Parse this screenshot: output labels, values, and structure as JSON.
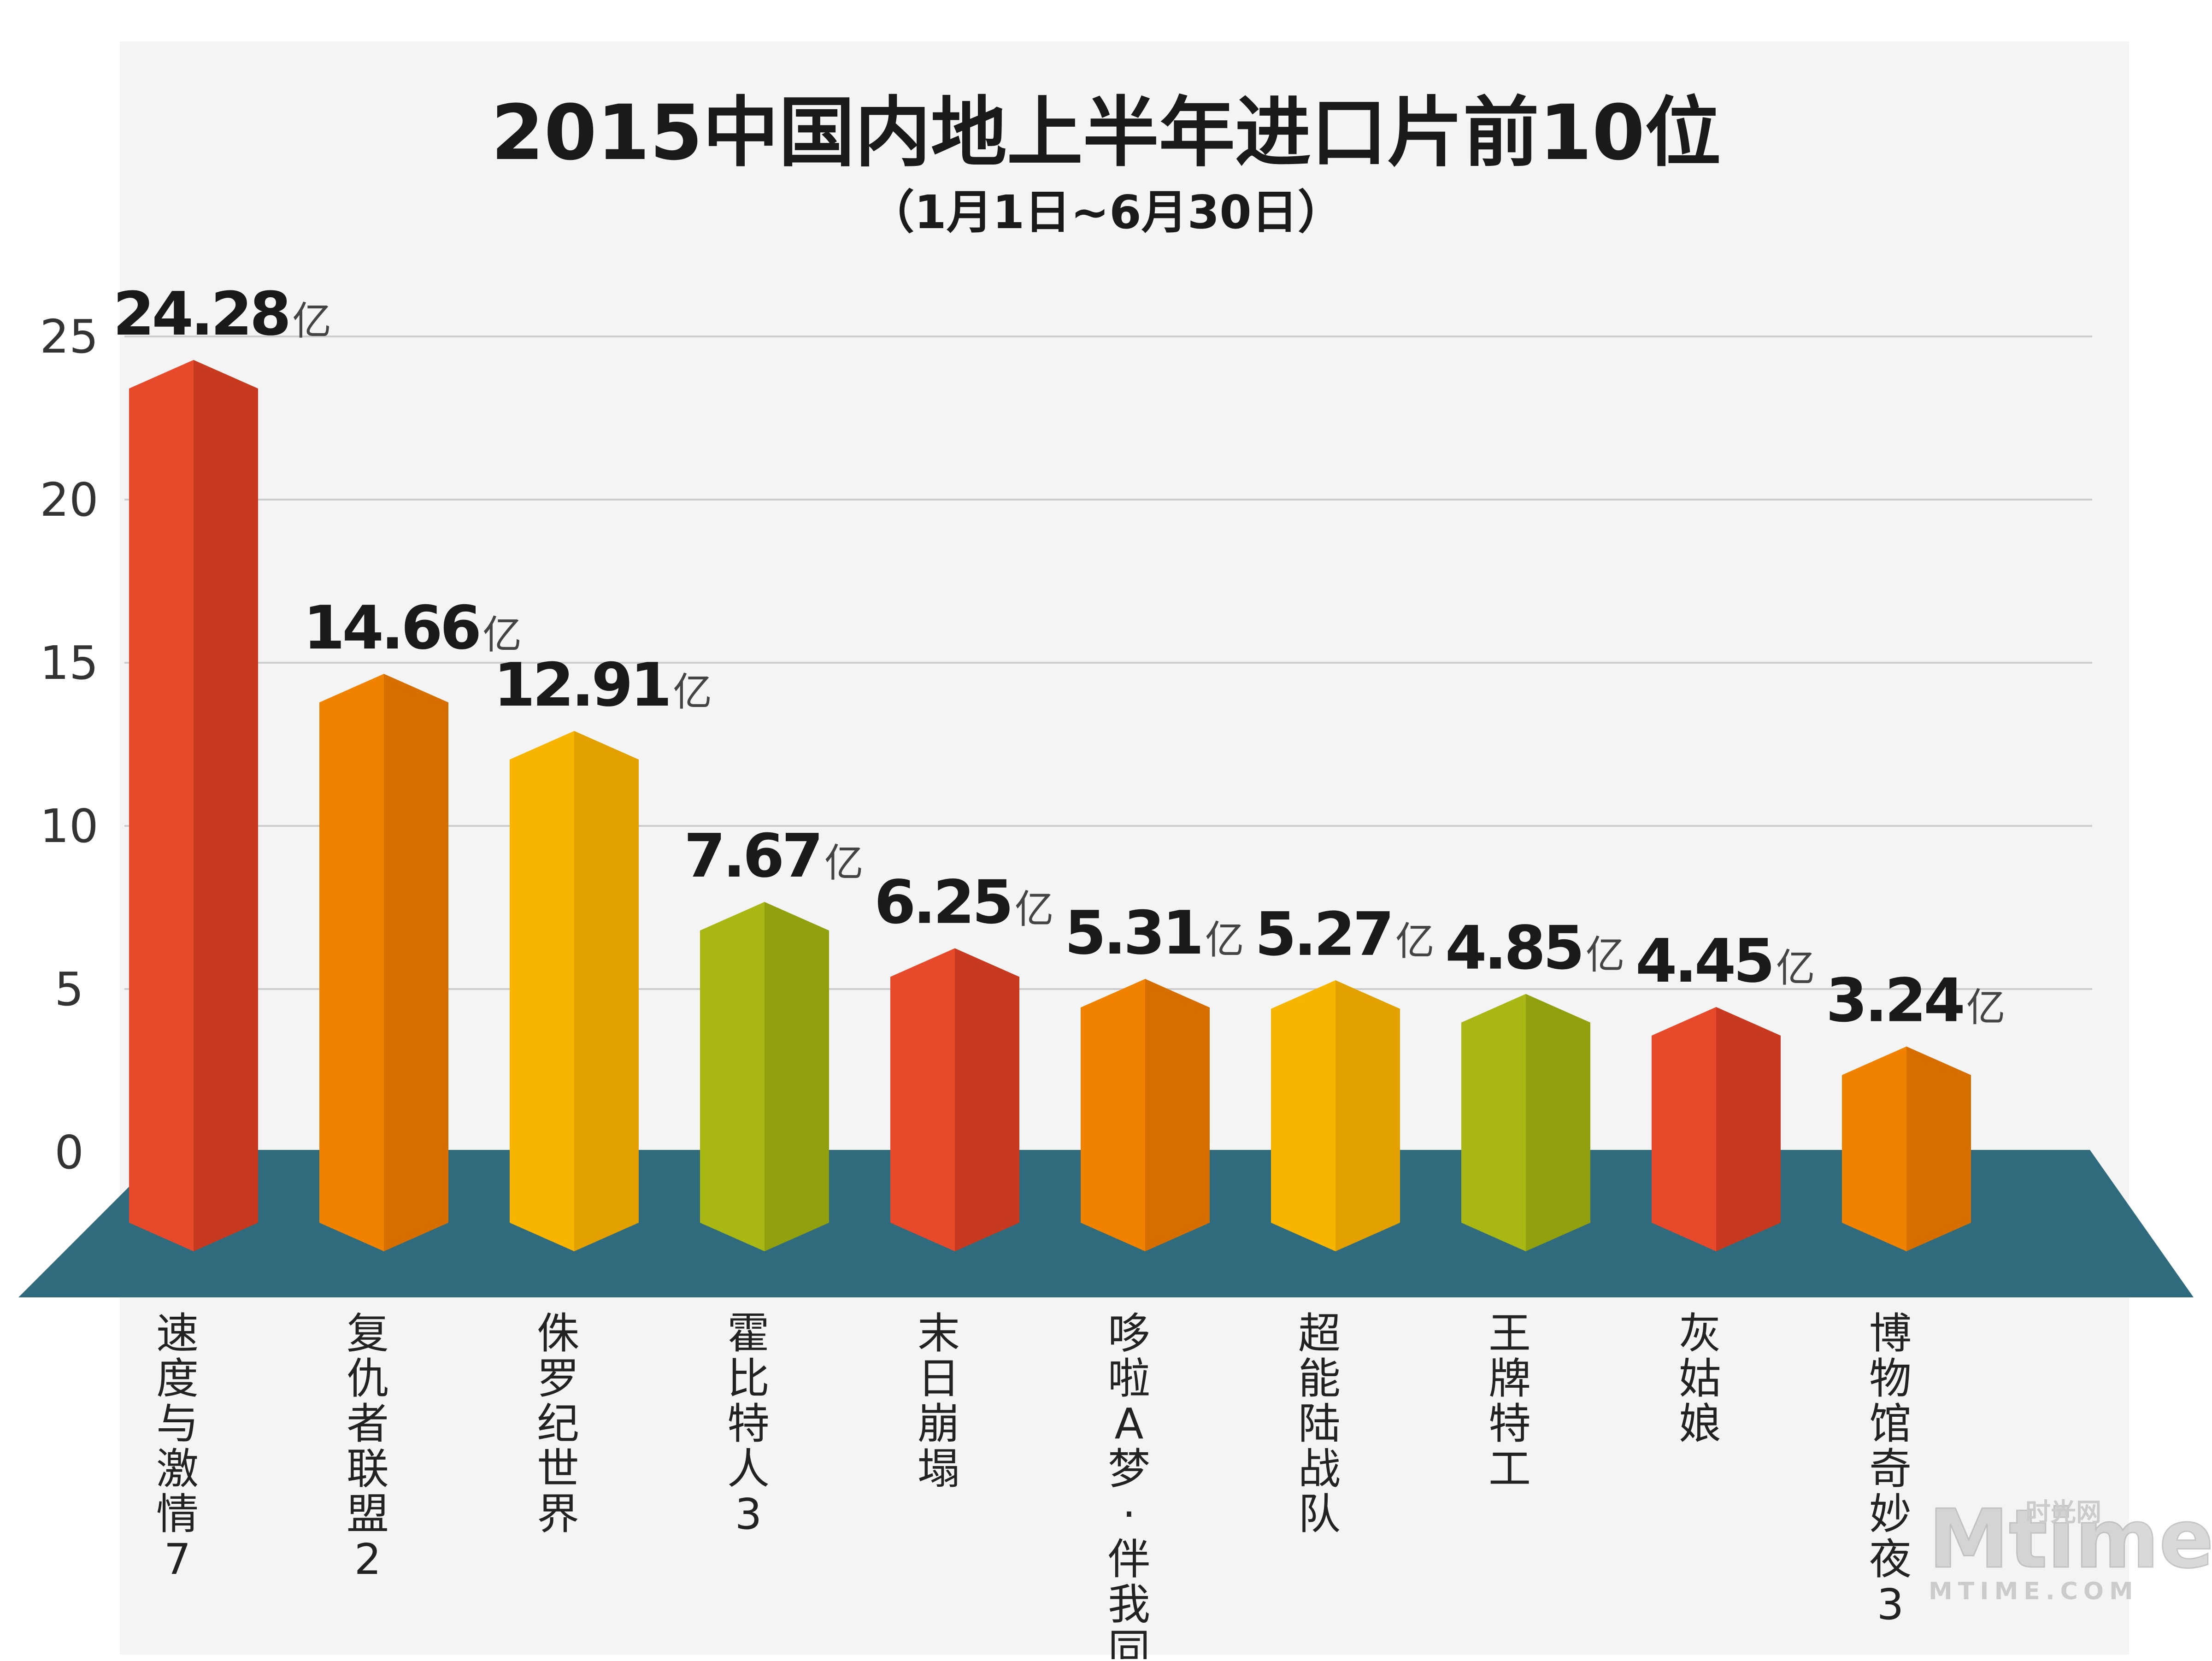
{
  "chart_data": {
    "type": "bar",
    "title": "2015中国内地上半年进口片前10位",
    "subtitle": "（1月1日~6月30日）",
    "unit": "亿",
    "ylim": [
      0,
      25
    ],
    "yticks": [
      "0",
      "5",
      "10",
      "15",
      "20",
      "25"
    ],
    "grid": true,
    "categories": [
      "速度与激情7",
      "复仇者联盟2",
      "侏罗纪世界",
      "霍比特人3",
      "末日崩塌",
      "哆啦A梦·伴我同行",
      "超能陆战队",
      "王牌特工",
      "灰姑娘",
      "博物馆奇妙夜3"
    ],
    "values": [
      24.28,
      14.66,
      12.91,
      7.67,
      6.25,
      5.31,
      5.27,
      4.85,
      4.45,
      3.24
    ],
    "value_labels": [
      "24.28",
      "14.66",
      "12.91",
      "7.67",
      "6.25",
      "5.31",
      "5.27",
      "4.85",
      "4.45",
      "3.24"
    ],
    "colors": [
      "#e74a2b",
      "#f08200",
      "#f7b500",
      "#a8b714",
      "#e74a2b",
      "#f08200",
      "#f7b500",
      "#a8b714",
      "#e74a2b",
      "#f08200"
    ],
    "side_colors": [
      "#c73a1f",
      "#d66f00",
      "#e3a100",
      "#90a00f",
      "#c73a1f",
      "#d66f00",
      "#e3a100",
      "#90a00f",
      "#c73a1f",
      "#d66f00"
    ],
    "floor_color": "#2f6b7d",
    "grid_color": "#cccccc"
  },
  "watermark": {
    "main": "Mtime",
    "site": "时光网",
    "url": "MTIME.COM"
  }
}
